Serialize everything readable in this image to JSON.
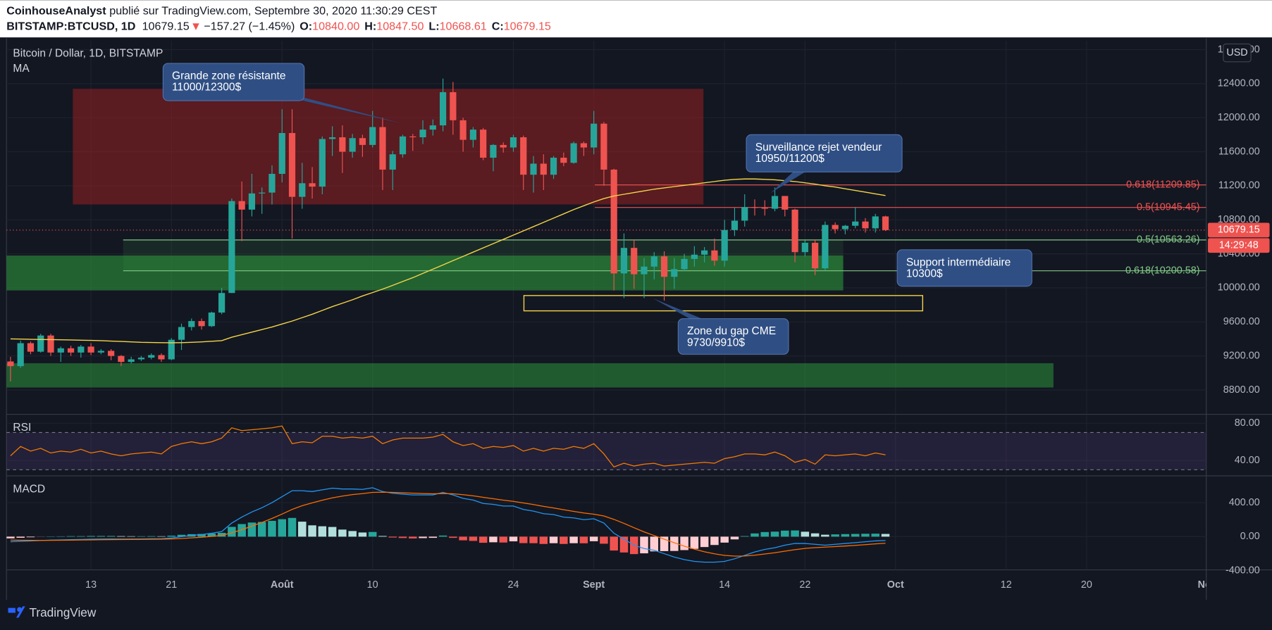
{
  "header": {
    "author": "CoinhouseAnalyst",
    "published": "publié sur TradingView.com, Septembre 30, 2020 11:30:29 CEST",
    "symbol": "BITSTAMP:BTCUSD, 1D",
    "price": "10679.15",
    "arrow": "▼",
    "change": "−157.27 (−1.45%)",
    "ohlc": [
      {
        "key": "O:",
        "value": "10840.00"
      },
      {
        "key": "H:",
        "value": "10847.50"
      },
      {
        "key": "L:",
        "value": "10668.61"
      },
      {
        "key": "C:",
        "value": "10679.15"
      }
    ]
  },
  "footer": {
    "brand": "TradingView"
  },
  "chart_data": [
    {
      "type": "candlestick",
      "title": "Bitcoin / Dollar, 1D, BITSTAMP",
      "currency": "USD",
      "grid": true,
      "xlim": [
        -0.4,
        118.9
      ],
      "xticks": [
        {
          "value": 8,
          "label": "13"
        },
        {
          "value": 16,
          "label": "21"
        },
        {
          "value": 27,
          "label": "Août"
        },
        {
          "value": 36,
          "label": "10"
        },
        {
          "value": 50,
          "label": "24"
        },
        {
          "value": 58,
          "label": "Sept"
        },
        {
          "value": 71,
          "label": "14"
        },
        {
          "value": 79,
          "label": "22"
        },
        {
          "value": 88,
          "label": "Oct"
        },
        {
          "value": 99,
          "label": "12"
        },
        {
          "value": 107,
          "label": "20"
        },
        {
          "value": 119,
          "label": "Nov"
        }
      ],
      "ylim": [
        8524,
        12905
      ],
      "yticks": [
        {
          "value": 8800,
          "label": "8800.00"
        },
        {
          "value": 9200,
          "label": "9200.00"
        },
        {
          "value": 9600,
          "label": "9600.00"
        },
        {
          "value": 10000,
          "label": "10000.00"
        },
        {
          "value": 10400,
          "label": "10400.00"
        },
        {
          "value": 10800,
          "label": "10800.00"
        },
        {
          "value": 11200,
          "label": "11200.00"
        },
        {
          "value": 11600,
          "label": "11600.00"
        },
        {
          "value": 12000,
          "label": "12000.00"
        },
        {
          "value": 12400,
          "label": "12400.00"
        },
        {
          "value": 12800,
          "label": "12800.00"
        }
      ],
      "up_color": "#26a69a",
      "down_color": "#ef5350",
      "open": [
        9135,
        9080,
        9350,
        9250,
        9440,
        9240,
        9290,
        9240,
        9310,
        9240,
        9260,
        9200,
        9130,
        9160,
        9180,
        9210,
        9160,
        9390,
        9540,
        9610,
        9550,
        9710,
        9940,
        11020,
        10920,
        11110,
        11120,
        11340,
        11820,
        11070,
        11230,
        11190,
        11750,
        11770,
        11600,
        11760,
        11680,
        11890,
        11390,
        11570,
        11780,
        11770,
        11860,
        11910,
        12300,
        11970,
        11740,
        11860,
        11530,
        11680,
        11650,
        11770,
        11330,
        11460,
        11330,
        11530,
        11470,
        11700,
        11650,
        11930,
        11390,
        10170,
        10470,
        10160,
        10250,
        10370,
        10130,
        10220,
        10340,
        10390,
        10440,
        10320,
        10680,
        10790,
        10950,
        10940,
        10930,
        11080,
        10920,
        10420,
        10530,
        10230,
        10740,
        10690,
        10730,
        10780,
        10700,
        10840
      ],
      "high": [
        9190,
        9380,
        9370,
        9460,
        9460,
        9310,
        9320,
        9330,
        9350,
        9280,
        9280,
        9210,
        9190,
        9200,
        9230,
        9230,
        9410,
        9580,
        9640,
        9640,
        9720,
        10000,
        11050,
        11250,
        11340,
        11180,
        11440,
        12100,
        12100,
        11470,
        11420,
        11780,
        11900,
        11910,
        11810,
        11800,
        12080,
        12000,
        11610,
        11800,
        11810,
        11970,
        11980,
        12460,
        12420,
        12000,
        11890,
        11880,
        11690,
        11710,
        11800,
        11790,
        11550,
        11570,
        11550,
        11590,
        11720,
        11720,
        12080,
        11950,
        11400,
        10640,
        10570,
        10350,
        10420,
        10430,
        10350,
        10400,
        10490,
        10480,
        10580,
        10800,
        10940,
        11100,
        11040,
        11030,
        11180,
        11080,
        10930,
        10560,
        10570,
        10780,
        10770,
        10740,
        10950,
        10820,
        10870,
        10847.5
      ],
      "low": [
        8900,
        9060,
        9220,
        9240,
        9200,
        9130,
        9200,
        9180,
        9210,
        9220,
        9150,
        9080,
        9110,
        9140,
        9160,
        9130,
        9150,
        9270,
        9500,
        9510,
        9540,
        9690,
        9940,
        10550,
        10840,
        10870,
        10980,
        11240,
        10580,
        10930,
        11050,
        11100,
        11550,
        11350,
        11530,
        11540,
        11650,
        11150,
        11150,
        11530,
        11610,
        11690,
        11790,
        11840,
        11800,
        11600,
        11650,
        11500,
        11370,
        11590,
        11600,
        11150,
        11120,
        11150,
        11280,
        11430,
        11460,
        11550,
        11570,
        11200,
        9970,
        9880,
        9990,
        9880,
        10100,
        9850,
        9990,
        10200,
        10250,
        10300,
        10260,
        10250,
        10610,
        10720,
        10850,
        10850,
        10900,
        10840,
        10300,
        10370,
        10150,
        10210,
        10640,
        10630,
        10700,
        10650,
        10650,
        10668.61
      ],
      "close": [
        9080,
        9350,
        9250,
        9440,
        9240,
        9290,
        9240,
        9310,
        9240,
        9260,
        9200,
        9130,
        9160,
        9180,
        9210,
        9160,
        9390,
        9540,
        9610,
        9550,
        9710,
        9940,
        11020,
        10920,
        11110,
        11120,
        11340,
        11820,
        11070,
        11230,
        11190,
        11750,
        11770,
        11600,
        11760,
        11680,
        11890,
        11390,
        11570,
        11780,
        11770,
        11860,
        11910,
        12300,
        11970,
        11740,
        11860,
        11530,
        11680,
        11650,
        11770,
        11330,
        11460,
        11330,
        11530,
        11470,
        11700,
        11650,
        11930,
        11390,
        10170,
        10470,
        10160,
        10250,
        10370,
        10130,
        10220,
        10340,
        10390,
        10440,
        10320,
        10680,
        10790,
        10950,
        10940,
        10930,
        11080,
        10920,
        10420,
        10530,
        10230,
        10740,
        10690,
        10730,
        10780,
        10700,
        10840,
        10679.15
      ],
      "ma": {
        "name": "MA",
        "color": "#f5d547",
        "values": [
          9400,
          9398,
          9395,
          9393,
          9392,
          9390,
          9388,
          9385,
          9383,
          9380,
          9375,
          9370,
          9365,
          9360,
          9358,
          9356,
          9355,
          9356,
          9360,
          9365,
          9372,
          9380,
          9420,
          9450,
          9480,
          9510,
          9540,
          9575,
          9610,
          9650,
          9690,
          9735,
          9780,
          9820,
          9860,
          9905,
          9945,
          9985,
          10030,
          10075,
          10120,
          10170,
          10220,
          10270,
          10320,
          10370,
          10420,
          10470,
          10520,
          10570,
          10620,
          10670,
          10720,
          10770,
          10820,
          10870,
          10920,
          10965,
          11010,
          11050,
          11080,
          11100,
          11120,
          11140,
          11160,
          11175,
          11190,
          11205,
          11220,
          11235,
          11250,
          11265,
          11275,
          11280,
          11280,
          11275,
          11270,
          11260,
          11250,
          11235,
          11220,
          11200,
          11185,
          11165,
          11145,
          11125,
          11105,
          11085
        ]
      },
      "last_price": 10679.15,
      "countdown": "14:29:48",
      "zones": [
        {
          "y0": 10980,
          "y1": 12340,
          "x0": 6.2,
          "x1": 68.9,
          "fill": "rgba(178,34,34,0.45)"
        },
        {
          "y0": 10200.58,
          "y1": 10563.26,
          "x0": 11.2,
          "x1": 82.8,
          "fill": "rgba(76,175,80,0.12)"
        },
        {
          "y0": 9970,
          "y1": 10380,
          "x0": -0.4,
          "x1": 82.8,
          "fill": "rgba(46,160,60,0.55)"
        },
        {
          "y0": 8829,
          "y1": 9114,
          "x0": -0.4,
          "x1": 103.7,
          "fill": "rgba(46,160,60,0.5)"
        },
        {
          "y0": 9730,
          "y1": 9910,
          "x0": 51.05,
          "x1": 90.7,
          "stroke": "#f5d547"
        }
      ],
      "fib_levels": [
        {
          "label": "0.618(11209.85)",
          "value": 11209.85,
          "x0": 58.1,
          "color": "#ef5350"
        },
        {
          "label": "0.5(10945.45)",
          "value": 10945.45,
          "x0": 58.1,
          "color": "#ef5350"
        },
        {
          "label": "0.5(10563.26)",
          "value": 10563.26,
          "x0": 11.2,
          "color": "#81c784"
        },
        {
          "label": "0.618(10200.58)",
          "value": 10200.58,
          "x0": 11.2,
          "color": "#81c784"
        }
      ],
      "annotations": [
        {
          "title": "Grande zone résistante",
          "text": "11000/12300$"
        },
        {
          "title": "Surveillance rejet vendeur",
          "text": "10950/11200$"
        },
        {
          "title": "Support intermédiaire",
          "text": "10300$"
        },
        {
          "title": "Zone du gap CME",
          "text": "9730/9910$"
        }
      ]
    },
    {
      "type": "line",
      "title": "RSI",
      "color": "#f57c00",
      "values": [
        45,
        55,
        50,
        53,
        48,
        50,
        49,
        52,
        48,
        50,
        47,
        45,
        47,
        48,
        49,
        47,
        55,
        58,
        60,
        58,
        60,
        64,
        75,
        72,
        73,
        74,
        75,
        77,
        58,
        60,
        59,
        66,
        66,
        64,
        65,
        64,
        66,
        58,
        62,
        64,
        64,
        64,
        65,
        68,
        60,
        56,
        58,
        53,
        55,
        54,
        56,
        50,
        53,
        50,
        53,
        52,
        55,
        53,
        58,
        47,
        33,
        37,
        34,
        36,
        37,
        34,
        35,
        36,
        37,
        38,
        37,
        42,
        44,
        47,
        47,
        46,
        49,
        45,
        38,
        41,
        36,
        46,
        45,
        46,
        47,
        45,
        48,
        46
      ],
      "ylim": [
        25.2,
        88.7
      ],
      "yticks": [
        {
          "value": 40,
          "label": "40.00"
        },
        {
          "value": 80,
          "label": "80.00"
        }
      ],
      "bands": [
        30,
        70
      ],
      "band_color": "rgba(126,87,194,0.15)"
    },
    {
      "type": "macd",
      "title": "MACD",
      "ylim": [
        -390,
        705
      ],
      "yticks": [
        {
          "value": -400,
          "label": "-400.00"
        },
        {
          "value": 0,
          "label": "0.00"
        },
        {
          "value": 400,
          "label": "400.00"
        }
      ],
      "macd": {
        "color": "#2196f3",
        "values": [
          -60,
          -55,
          -50,
          -45,
          -40,
          -38,
          -35,
          -33,
          -30,
          -28,
          -27,
          -28,
          -28,
          -27,
          -25,
          -25,
          -15,
          0,
          15,
          25,
          40,
          60,
          160,
          230,
          290,
          340,
          400,
          470,
          540,
          540,
          530,
          550,
          570,
          560,
          560,
          555,
          575,
          530,
          510,
          500,
          490,
          490,
          490,
          520,
          490,
          450,
          430,
          390,
          380,
          360,
          360,
          320,
          300,
          270,
          260,
          230,
          220,
          200,
          210,
          160,
          40,
          -30,
          -100,
          -140,
          -160,
          -200,
          -240,
          -270,
          -290,
          -300,
          -300,
          -290,
          -260,
          -220,
          -180,
          -150,
          -130,
          -100,
          -80,
          -80,
          -90,
          -100,
          -90,
          -80,
          -70,
          -60,
          -50,
          -45
        ]
      },
      "signal": {
        "color": "#ff6d00",
        "values": [
          -40,
          -42,
          -43,
          -44,
          -43,
          -42,
          -41,
          -39,
          -38,
          -36,
          -35,
          -34,
          -33,
          -32,
          -31,
          -30,
          -27,
          -22,
          -14,
          -7,
          3,
          15,
          45,
          82,
          124,
          167,
          214,
          265,
          320,
          364,
          397,
          428,
          456,
          477,
          494,
          506,
          520,
          522,
          520,
          516,
          511,
          507,
          504,
          507,
          504,
          493,
          480,
          462,
          446,
          429,
          415,
          396,
          377,
          356,
          337,
          316,
          297,
          278,
          264,
          243,
          203,
          156,
          105,
          56,
          13,
          -30,
          -72,
          -112,
          -147,
          -178,
          -202,
          -220,
          -228,
          -227,
          -218,
          -204,
          -189,
          -171,
          -153,
          -138,
          -129,
          -123,
          -117,
          -110,
          -102,
          -94,
          -85,
          -77
        ]
      },
      "histogram": {
        "values": [
          -20,
          -13,
          -7,
          -1,
          3,
          4,
          6,
          6,
          8,
          8,
          8,
          6,
          5,
          5,
          6,
          5,
          12,
          22,
          29,
          32,
          37,
          45,
          115,
          148,
          166,
          173,
          186,
          205,
          220,
          176,
          133,
          122,
          114,
          83,
          66,
          49,
          55,
          8,
          -10,
          -16,
          -21,
          -17,
          -14,
          13,
          -14,
          -43,
          -50,
          -72,
          -66,
          -69,
          -55,
          -76,
          -77,
          -86,
          -77,
          -86,
          -77,
          -78,
          -54,
          -83,
          -163,
          -186,
          -205,
          -196,
          -173,
          -170,
          -168,
          -158,
          -143,
          -122,
          -98,
          -70,
          -32,
          7,
          38,
          54,
          59,
          71,
          73,
          58,
          39,
          23,
          27,
          30,
          32,
          34,
          35,
          32
        ],
        "colors": {
          "up": "#26a69a",
          "up_light": "#b2dfdb",
          "down": "#ef5350",
          "down_light": "#ffcdd2"
        }
      }
    }
  ]
}
